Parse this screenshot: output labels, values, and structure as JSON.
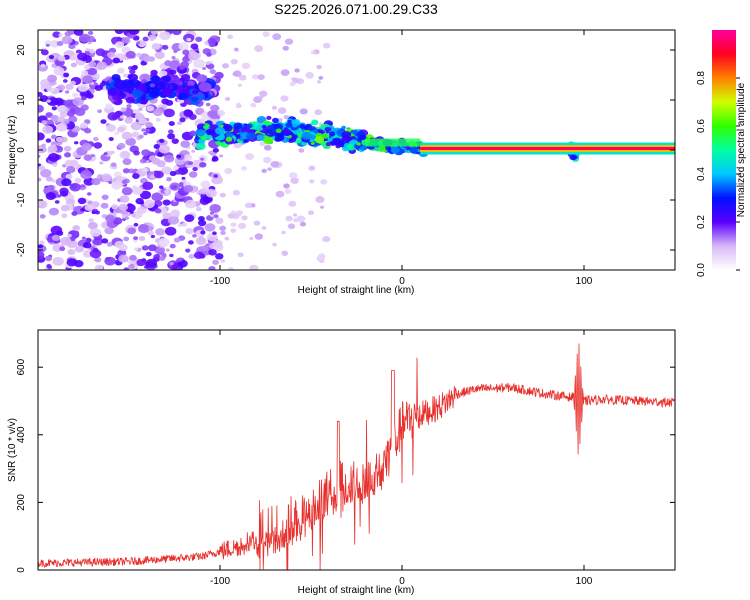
{
  "title": "S225.2026.071.00.29.C33",
  "chart_data": [
    {
      "type": "heatmap",
      "xlabel": "Height of straight line (km)",
      "ylabel": "Frequency (Hz)",
      "xlim": [
        -200,
        150
      ],
      "ylim": [
        -24,
        24
      ],
      "x_ticks": [
        -100,
        0,
        100
      ],
      "y_ticks": [
        -20,
        -10,
        0,
        10,
        20
      ],
      "colorbar": {
        "label": "Normalized spectral amplitude",
        "range": [
          0,
          1
        ],
        "ticks": [
          "0.0",
          "0.2",
          "0.4",
          "0.6",
          "0.8"
        ],
        "colormap": "white-purple-blue-cyan-green-yellow-red-magenta"
      },
      "ridge": {
        "description_values": [
          {
            "x": -130,
            "freq": 12
          },
          {
            "x": -110,
            "freq": 3
          },
          {
            "x": -60,
            "freq": 4
          },
          {
            "x": -20,
            "freq": 1.5
          },
          {
            "x": 10,
            "freq": 0.3
          },
          {
            "x": 150,
            "freq": 0.3
          }
        ]
      }
    },
    {
      "type": "line",
      "xlabel": "Height of straight line (km)",
      "ylabel": "SNR (10 * v/v)",
      "xlim": [
        -200,
        150
      ],
      "ylim": [
        0,
        710
      ],
      "x_ticks": [
        -100,
        0,
        100
      ],
      "y_ticks": [
        0,
        200,
        400,
        600
      ],
      "color": "#e8302c",
      "series": [
        {
          "x": [
            -200,
            -150,
            -110,
            -90,
            -70,
            -50,
            -35,
            -20,
            -10,
            -5,
            0,
            10,
            20,
            30,
            40,
            60,
            80,
            95,
            100,
            110,
            130,
            150
          ],
          "values": [
            20,
            25,
            40,
            70,
            130,
            180,
            260,
            280,
            320,
            360,
            430,
            460,
            480,
            520,
            535,
            540,
            520,
            510,
            500,
            505,
            500,
            495
          ]
        }
      ]
    }
  ]
}
